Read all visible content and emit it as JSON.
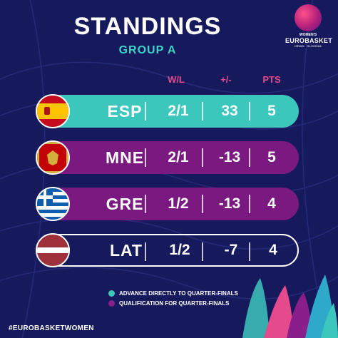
{
  "header": {
    "title": "STANDINGS",
    "subtitle": "GROUP A"
  },
  "logo": {
    "line1": "WOMEN'S",
    "line2": "EUROBASKET",
    "line3": "ISRAEL · SLOVENIA"
  },
  "columns": {
    "wl": "W/L",
    "pm": "+/-",
    "pts": "PTS"
  },
  "rows": [
    {
      "team": "ESP",
      "wl": "2/1",
      "pm": "33",
      "pts": "5",
      "status": "advance",
      "flag": "spain-flag-icon"
    },
    {
      "team": "MNE",
      "wl": "2/1",
      "pm": "-13",
      "pts": "5",
      "status": "qualification",
      "flag": "montenegro-flag-icon"
    },
    {
      "team": "GRE",
      "wl": "1/2",
      "pm": "-13",
      "pts": "4",
      "status": "qualification",
      "flag": "greece-flag-icon"
    },
    {
      "team": "LAT",
      "wl": "1/2",
      "pm": "-7",
      "pts": "4",
      "status": "none",
      "flag": "latvia-flag-icon"
    }
  ],
  "legend": [
    {
      "label": "ADVANCE DIRECTLY TO QUARTER-FINALS",
      "color": "#3cc7bd"
    },
    {
      "label": "QUALIFICATION FOR QUARTER-FINALS",
      "color": "#8a1f8c"
    }
  ],
  "hashtag": "#EUROBASKETWOMEN",
  "colors": {
    "background": "#161a5c",
    "teal": "#3cc7bd",
    "purple": "#7a1a80",
    "pink": "#e44a8c"
  }
}
